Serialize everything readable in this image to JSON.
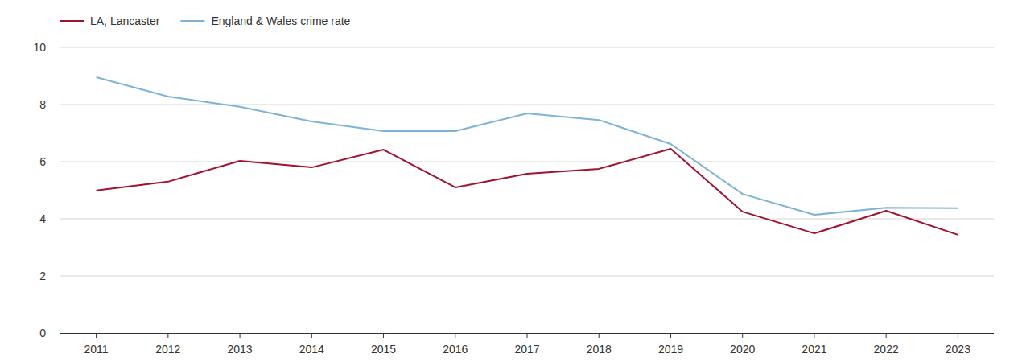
{
  "chart_data": {
    "type": "line",
    "categories": [
      "2011",
      "2012",
      "2013",
      "2014",
      "2015",
      "2016",
      "2017",
      "2018",
      "2019",
      "2020",
      "2021",
      "2022",
      "2023"
    ],
    "series": [
      {
        "name": "LA, Lancaster",
        "color": "#a3112e",
        "values": [
          4.99,
          5.3,
          6.03,
          5.8,
          6.42,
          5.1,
          5.58,
          5.75,
          6.45,
          4.25,
          3.49,
          4.28,
          3.44
        ]
      },
      {
        "name": "England & Wales crime rate",
        "color": "#7db3d8",
        "values": [
          8.96,
          8.28,
          7.92,
          7.41,
          7.07,
          7.07,
          7.69,
          7.46,
          6.62,
          4.87,
          4.14,
          4.39,
          4.37
        ]
      }
    ],
    "ylim": [
      0,
      10
    ],
    "yticks": [
      0,
      2,
      4,
      6,
      8,
      10
    ],
    "grid": true,
    "legend": "top-left"
  }
}
